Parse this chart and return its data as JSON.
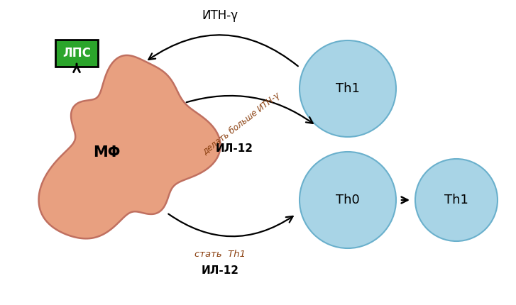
{
  "bg_color": "#ffffff",
  "macrophage_color": "#e8a080",
  "macrophage_edge_color": "#c07060",
  "cell_color": "#a8d4e6",
  "cell_edge_color": "#6ab0cc",
  "lps_box_color": "#2ba52b",
  "lps_text_color": "#ffffff",
  "arrow_color": "#000000",
  "italic_color": "#8b4010",
  "label_mf": "МΦ",
  "label_th1_top": "Th1",
  "label_th0": "Th0",
  "label_th1_right": "Th1",
  "label_lps": "ЛПС",
  "label_ifn_top": "ИΤН-γ",
  "label_il12_mid": "ИЛ-12",
  "label_make_more": "делать больше ИΤН-γ",
  "label_become_th1": "стать  Th1",
  "label_il12_bot": "ИЛ-12",
  "figw": 7.27,
  "figh": 4.3,
  "dpi": 100
}
